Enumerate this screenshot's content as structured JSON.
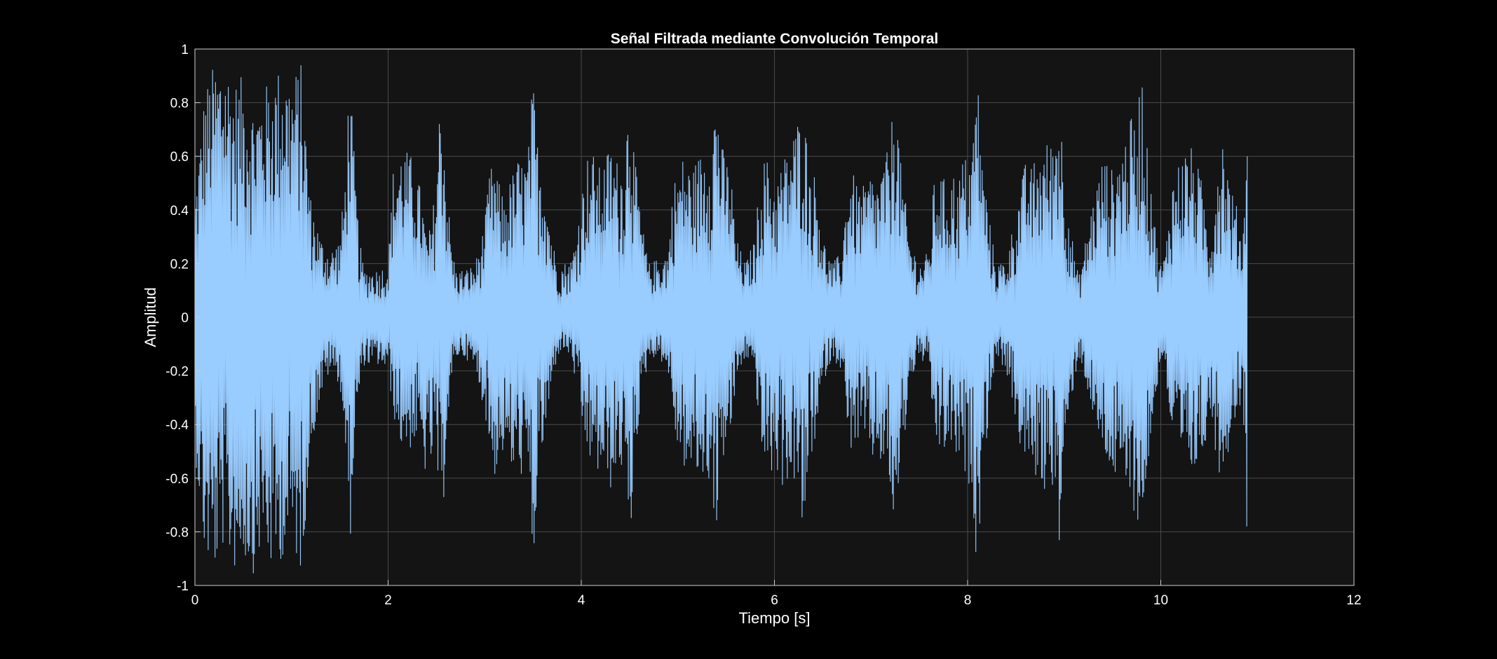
{
  "chart_data": {
    "type": "line",
    "title": "Señal Filtrada mediante Convolución Temporal",
    "xlabel": "Tiempo [s]",
    "ylabel": "Amplitud",
    "xlim": [
      0,
      12
    ],
    "ylim": [
      -1,
      1
    ],
    "xticks": [
      0,
      2,
      4,
      6,
      8,
      10,
      12
    ],
    "xtick_labels": [
      "0",
      "2",
      "4",
      "6",
      "8",
      "10",
      "12"
    ],
    "yticks": [
      1,
      0.8,
      0.6,
      0.4,
      0.2,
      0,
      -0.2,
      -0.4,
      -0.6,
      -0.8,
      -1
    ],
    "ytick_labels": [
      "1",
      "0.8",
      "0.6",
      "0.4",
      "0.2",
      "0",
      "-0.2",
      "-0.4",
      "-0.6",
      "-0.8",
      "-1"
    ],
    "grid": true,
    "series": [
      {
        "color": "#99ccff",
        "x_end": 11.0,
        "envelope_time": [
          0.0,
          0.1,
          0.2,
          0.3,
          0.4,
          0.5,
          0.6,
          0.7,
          0.8,
          0.9,
          1.0,
          1.1,
          1.2,
          1.3,
          1.4,
          1.5,
          1.55,
          1.6,
          1.65,
          1.7,
          1.75,
          1.8,
          1.9,
          2.0,
          2.05,
          2.1,
          2.15,
          2.2,
          2.25,
          2.3,
          2.35,
          2.4,
          2.45,
          2.5,
          2.55,
          2.6,
          2.65,
          2.7,
          2.8,
          2.9,
          3.0,
          3.05,
          3.1,
          3.15,
          3.2,
          3.25,
          3.3,
          3.35,
          3.4,
          3.45,
          3.5,
          3.55,
          3.6,
          3.65,
          3.7,
          3.75,
          3.8,
          3.9,
          4.0,
          4.05,
          4.1,
          4.15,
          4.2,
          4.25,
          4.3,
          4.35,
          4.4,
          4.45,
          4.5,
          4.55,
          4.6,
          4.65,
          4.7,
          4.8,
          4.9,
          4.95,
          5.0,
          5.05,
          5.1,
          5.15,
          5.2,
          5.25,
          5.3,
          5.35,
          5.4,
          5.45,
          5.5,
          5.55,
          5.6,
          5.7,
          5.8,
          5.85,
          5.9,
          5.95,
          6.0,
          6.05,
          6.1,
          6.15,
          6.2,
          6.25,
          6.3,
          6.35,
          6.4,
          6.45,
          6.5,
          6.6,
          6.7,
          6.75,
          6.8,
          6.85,
          6.9,
          6.95,
          7.0,
          7.05,
          7.1,
          7.15,
          7.2,
          7.25,
          7.3,
          7.35,
          7.4,
          7.5,
          7.6,
          7.65,
          7.7,
          7.75,
          7.8,
          7.85,
          7.9,
          7.95,
          8.0,
          8.05,
          8.1,
          8.15,
          8.2,
          8.25,
          8.3,
          8.4,
          8.5,
          8.55,
          8.6,
          8.65,
          8.7,
          8.75,
          8.8,
          8.85,
          8.9,
          8.95,
          9.0,
          9.05,
          9.1,
          9.15,
          9.2,
          9.3,
          9.4,
          9.45,
          9.5,
          9.55,
          9.6,
          9.65,
          9.7,
          9.75,
          9.8,
          9.85,
          9.9,
          9.95,
          10.0,
          10.05,
          10.1,
          10.2,
          10.3,
          10.35,
          10.4,
          10.45,
          10.5,
          10.55,
          10.6,
          10.65,
          10.7,
          10.75,
          10.8,
          10.85,
          10.9,
          10.95,
          11.0
        ],
        "envelope_upper": [
          0.45,
          0.85,
          0.95,
          1.0,
          0.88,
          0.9,
          0.8,
          0.85,
          0.9,
          0.95,
          0.9,
          0.95,
          0.45,
          0.3,
          0.25,
          0.3,
          0.5,
          0.93,
          0.6,
          0.3,
          0.18,
          0.18,
          0.18,
          0.2,
          0.55,
          0.6,
          0.65,
          0.62,
          0.6,
          0.55,
          0.45,
          0.3,
          0.35,
          0.55,
          0.92,
          0.55,
          0.3,
          0.18,
          0.18,
          0.2,
          0.35,
          0.55,
          0.58,
          0.5,
          0.45,
          0.5,
          0.55,
          0.6,
          0.58,
          0.62,
          0.9,
          0.65,
          0.6,
          0.45,
          0.3,
          0.2,
          0.2,
          0.22,
          0.45,
          0.6,
          0.62,
          0.6,
          0.55,
          0.6,
          0.65,
          0.6,
          0.58,
          0.6,
          0.93,
          0.6,
          0.45,
          0.3,
          0.2,
          0.22,
          0.25,
          0.5,
          0.55,
          0.6,
          0.58,
          0.55,
          0.6,
          0.62,
          0.66,
          0.7,
          0.88,
          0.65,
          0.6,
          0.55,
          0.3,
          0.2,
          0.3,
          0.55,
          0.6,
          0.58,
          0.5,
          0.55,
          0.6,
          0.65,
          0.7,
          0.75,
          0.82,
          0.6,
          0.55,
          0.5,
          0.3,
          0.2,
          0.25,
          0.5,
          0.55,
          0.5,
          0.48,
          0.5,
          0.55,
          0.5,
          0.55,
          0.6,
          0.65,
          0.95,
          0.6,
          0.45,
          0.3,
          0.2,
          0.25,
          0.5,
          0.55,
          0.52,
          0.5,
          0.55,
          0.5,
          0.6,
          0.6,
          0.65,
          0.95,
          0.6,
          0.45,
          0.3,
          0.2,
          0.22,
          0.4,
          0.5,
          0.58,
          0.55,
          0.6,
          0.62,
          0.66,
          0.65,
          0.7,
          0.85,
          0.55,
          0.4,
          0.25,
          0.15,
          0.25,
          0.45,
          0.6,
          0.58,
          0.55,
          0.6,
          0.65,
          0.7,
          0.75,
          0.72,
          0.97,
          0.65,
          0.55,
          0.3,
          0.2,
          0.25,
          0.5,
          0.6,
          0.65,
          0.6,
          0.55,
          0.45,
          0.3,
          0.4,
          0.65,
          0.7,
          0.55,
          0.45,
          0.4,
          0.3,
          0.88
        ],
        "envelope_lower": [
          -0.5,
          -0.9,
          -0.96,
          -0.85,
          -0.95,
          -0.9,
          -0.96,
          -0.85,
          -0.96,
          -0.9,
          -0.85,
          -0.96,
          -0.5,
          -0.3,
          -0.2,
          -0.25,
          -0.45,
          -0.9,
          -0.5,
          -0.3,
          -0.18,
          -0.18,
          -0.18,
          -0.2,
          -0.35,
          -0.45,
          -0.5,
          -0.48,
          -0.5,
          -0.45,
          -0.55,
          -0.6,
          -0.55,
          -0.5,
          -0.93,
          -0.45,
          -0.3,
          -0.15,
          -0.15,
          -0.2,
          -0.35,
          -0.5,
          -0.6,
          -0.55,
          -0.5,
          -0.55,
          -0.6,
          -0.58,
          -0.6,
          -0.62,
          -1.0,
          -0.6,
          -0.5,
          -0.4,
          -0.25,
          -0.15,
          -0.12,
          -0.15,
          -0.4,
          -0.5,
          -0.55,
          -0.6,
          -0.58,
          -0.6,
          -0.65,
          -0.6,
          -0.58,
          -0.55,
          -0.95,
          -0.5,
          -0.4,
          -0.25,
          -0.15,
          -0.15,
          -0.2,
          -0.4,
          -0.5,
          -0.55,
          -0.6,
          -0.58,
          -0.6,
          -0.62,
          -0.6,
          -0.65,
          -0.82,
          -0.55,
          -0.5,
          -0.45,
          -0.25,
          -0.15,
          -0.2,
          -0.5,
          -0.55,
          -0.6,
          -0.58,
          -0.6,
          -0.65,
          -0.6,
          -0.62,
          -0.65,
          -0.9,
          -0.55,
          -0.5,
          -0.45,
          -0.25,
          -0.15,
          -0.2,
          -0.45,
          -0.5,
          -0.48,
          -0.45,
          -0.5,
          -0.55,
          -0.52,
          -0.55,
          -0.6,
          -0.65,
          -0.9,
          -0.55,
          -0.45,
          -0.25,
          -0.15,
          -0.2,
          -0.45,
          -0.5,
          -0.52,
          -0.48,
          -0.5,
          -0.55,
          -0.6,
          -0.62,
          -0.65,
          -1.0,
          -0.55,
          -0.45,
          -0.25,
          -0.15,
          -0.2,
          -0.4,
          -0.5,
          -0.55,
          -0.58,
          -0.6,
          -0.62,
          -0.66,
          -0.6,
          -0.65,
          -0.88,
          -0.55,
          -0.4,
          -0.25,
          -0.15,
          -0.2,
          -0.4,
          -0.5,
          -0.55,
          -0.6,
          -0.62,
          -0.65,
          -0.68,
          -0.7,
          -0.75,
          -0.85,
          -0.6,
          -0.5,
          -0.3,
          -0.15,
          -0.2,
          -0.45,
          -0.55,
          -0.6,
          -0.58,
          -0.55,
          -0.5,
          -0.35,
          -0.45,
          -0.6,
          -0.55,
          -0.5,
          -0.4,
          -0.35,
          -0.3,
          -0.92
        ]
      }
    ]
  }
}
